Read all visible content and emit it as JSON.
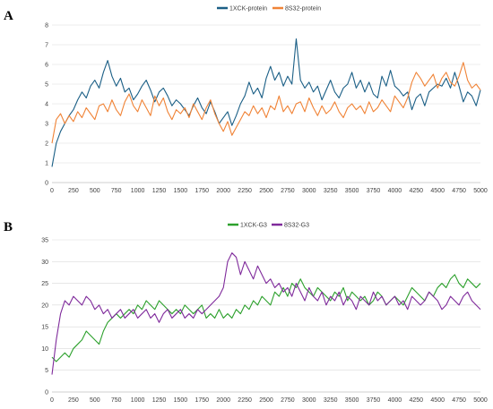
{
  "chart_data": [
    {
      "panel": "A",
      "type": "line",
      "title": "",
      "xlabel": "",
      "ylabel": "",
      "xlim": [
        0,
        5000
      ],
      "ylim": [
        0,
        8
      ],
      "grid": "horizontal",
      "legend_position": "top-center",
      "xticks": [
        "0",
        "250",
        "500",
        "750",
        "1000",
        "1250",
        "1500",
        "1750",
        "2000",
        "2250",
        "2500",
        "2750",
        "3000",
        "3250",
        "3500",
        "3750",
        "4000",
        "4250",
        "4500",
        "4750",
        "5000"
      ],
      "yticks": [
        "0",
        "1",
        "2",
        "3",
        "4",
        "5",
        "6",
        "7",
        "8"
      ],
      "series": [
        {
          "name": "1XCK-protein",
          "color": "#1b5f86",
          "x": [
            0,
            50,
            100,
            150,
            200,
            250,
            300,
            350,
            400,
            450,
            500,
            550,
            600,
            650,
            700,
            750,
            800,
            850,
            900,
            950,
            1000,
            1050,
            1100,
            1150,
            1200,
            1250,
            1300,
            1350,
            1400,
            1450,
            1500,
            1550,
            1600,
            1650,
            1700,
            1750,
            1800,
            1850,
            1900,
            1950,
            2000,
            2050,
            2100,
            2150,
            2200,
            2250,
            2300,
            2350,
            2400,
            2450,
            2500,
            2550,
            2600,
            2650,
            2700,
            2750,
            2800,
            2850,
            2900,
            2950,
            3000,
            3050,
            3100,
            3150,
            3200,
            3250,
            3300,
            3350,
            3400,
            3450,
            3500,
            3550,
            3600,
            3650,
            3700,
            3750,
            3800,
            3850,
            3900,
            3950,
            4000,
            4050,
            4100,
            4150,
            4200,
            4250,
            4300,
            4350,
            4400,
            4450,
            4500,
            4550,
            4600,
            4650,
            4700,
            4750,
            4800,
            4850,
            4900,
            4950,
            5000
          ],
          "values": [
            0.8,
            2.0,
            2.6,
            3.0,
            3.4,
            3.7,
            4.2,
            4.6,
            4.3,
            4.9,
            5.2,
            4.8,
            5.6,
            6.2,
            5.4,
            4.9,
            5.3,
            4.6,
            4.8,
            4.2,
            4.5,
            4.9,
            5.2,
            4.7,
            4.1,
            4.6,
            4.8,
            4.4,
            3.9,
            4.2,
            4.0,
            3.7,
            3.4,
            3.9,
            4.3,
            3.8,
            3.5,
            4.1,
            3.6,
            3.0,
            3.3,
            3.6,
            2.9,
            3.4,
            4.0,
            4.4,
            5.1,
            4.5,
            4.8,
            4.3,
            5.3,
            5.9,
            5.2,
            5.6,
            4.9,
            5.4,
            5.0,
            7.3,
            5.2,
            4.8,
            5.1,
            4.6,
            4.9,
            4.2,
            4.7,
            5.2,
            4.6,
            4.3,
            4.8,
            5.0,
            5.6,
            4.8,
            5.2,
            4.6,
            5.1,
            4.5,
            4.3,
            5.4,
            4.9,
            5.7,
            4.9,
            4.7,
            4.4,
            4.6,
            3.7,
            4.3,
            4.5,
            3.9,
            4.6,
            4.8,
            5.0,
            4.9,
            5.3,
            4.8,
            5.6,
            4.9,
            4.1,
            4.6,
            4.4,
            3.9,
            4.7
          ]
        },
        {
          "name": "8S32-protein",
          "color": "#f08336",
          "x": [
            0,
            50,
            100,
            150,
            200,
            250,
            300,
            350,
            400,
            450,
            500,
            550,
            600,
            650,
            700,
            750,
            800,
            850,
            900,
            950,
            1000,
            1050,
            1100,
            1150,
            1200,
            1250,
            1300,
            1350,
            1400,
            1450,
            1500,
            1550,
            1600,
            1650,
            1700,
            1750,
            1800,
            1850,
            1900,
            1950,
            2000,
            2050,
            2100,
            2150,
            2200,
            2250,
            2300,
            2350,
            2400,
            2450,
            2500,
            2550,
            2600,
            2650,
            2700,
            2750,
            2800,
            2850,
            2900,
            2950,
            3000,
            3050,
            3100,
            3150,
            3200,
            3250,
            3300,
            3350,
            3400,
            3450,
            3500,
            3550,
            3600,
            3650,
            3700,
            3750,
            3800,
            3850,
            3900,
            3950,
            4000,
            4050,
            4100,
            4150,
            4200,
            4250,
            4300,
            4350,
            4400,
            4450,
            4500,
            4550,
            4600,
            4650,
            4700,
            4750,
            4800,
            4850,
            4900,
            4950,
            5000
          ],
          "values": [
            2.0,
            3.2,
            3.5,
            3.0,
            3.4,
            3.1,
            3.6,
            3.3,
            3.8,
            3.5,
            3.2,
            3.9,
            4.0,
            3.6,
            4.2,
            3.7,
            3.4,
            4.1,
            4.5,
            3.9,
            3.6,
            4.2,
            3.8,
            3.4,
            4.4,
            3.9,
            4.3,
            3.6,
            3.2,
            3.7,
            3.5,
            3.8,
            3.3,
            4.0,
            3.6,
            3.2,
            3.8,
            4.2,
            3.5,
            3.0,
            2.6,
            3.1,
            2.4,
            2.8,
            3.2,
            3.6,
            3.4,
            3.9,
            3.5,
            3.8,
            3.3,
            3.9,
            3.7,
            4.4,
            3.6,
            3.9,
            3.5,
            4.0,
            4.1,
            3.6,
            4.3,
            3.8,
            3.4,
            3.9,
            3.5,
            3.7,
            4.1,
            3.6,
            3.3,
            3.8,
            4.0,
            3.7,
            3.9,
            3.5,
            4.1,
            3.6,
            3.8,
            4.2,
            3.9,
            3.6,
            4.4,
            4.1,
            3.8,
            4.3,
            5.1,
            5.6,
            5.3,
            4.9,
            5.2,
            5.5,
            4.8,
            5.3,
            5.6,
            5.1,
            4.9,
            5.4,
            6.1,
            5.2,
            4.8,
            5.0,
            4.7
          ]
        }
      ]
    },
    {
      "panel": "B",
      "type": "line",
      "title": "",
      "xlabel": "",
      "ylabel": "",
      "xlim": [
        0,
        5000
      ],
      "ylim": [
        0,
        35
      ],
      "grid": "horizontal",
      "legend_position": "top-center",
      "xticks": [
        "0",
        "250",
        "500",
        "750",
        "1000",
        "1250",
        "1500",
        "1750",
        "2000",
        "2250",
        "2500",
        "2750",
        "3000",
        "3250",
        "3500",
        "3750",
        "4000",
        "4250",
        "4500",
        "4750",
        "5000"
      ],
      "yticks": [
        "0",
        "5",
        "10",
        "15",
        "20",
        "25",
        "30",
        "35"
      ],
      "series": [
        {
          "name": "1XCK-G3",
          "color": "#2ca02c",
          "x": [
            0,
            50,
            100,
            150,
            200,
            250,
            300,
            350,
            400,
            450,
            500,
            550,
            600,
            650,
            700,
            750,
            800,
            850,
            900,
            950,
            1000,
            1050,
            1100,
            1150,
            1200,
            1250,
            1300,
            1350,
            1400,
            1450,
            1500,
            1550,
            1600,
            1650,
            1700,
            1750,
            1800,
            1850,
            1900,
            1950,
            2000,
            2050,
            2100,
            2150,
            2200,
            2250,
            2300,
            2350,
            2400,
            2450,
            2500,
            2550,
            2600,
            2650,
            2700,
            2750,
            2800,
            2850,
            2900,
            2950,
            3000,
            3050,
            3100,
            3150,
            3200,
            3250,
            3300,
            3350,
            3400,
            3450,
            3500,
            3550,
            3600,
            3650,
            3700,
            3750,
            3800,
            3850,
            3900,
            3950,
            4000,
            4050,
            4100,
            4150,
            4200,
            4250,
            4300,
            4350,
            4400,
            4450,
            4500,
            4550,
            4600,
            4650,
            4700,
            4750,
            4800,
            4850,
            4900,
            4950,
            5000
          ],
          "values": [
            8,
            7,
            8,
            9,
            8,
            10,
            11,
            12,
            14,
            13,
            12,
            11,
            14,
            16,
            17,
            18,
            17,
            18,
            19,
            18,
            20,
            19,
            21,
            20,
            19,
            21,
            20,
            19,
            18,
            19,
            18,
            20,
            19,
            18,
            19,
            20,
            17,
            18,
            17,
            19,
            17,
            18,
            17,
            19,
            18,
            20,
            19,
            21,
            20,
            22,
            21,
            20,
            23,
            22,
            24,
            22,
            25,
            24,
            26,
            24,
            23,
            22,
            24,
            23,
            22,
            21,
            23,
            22,
            24,
            21,
            23,
            22,
            21,
            22,
            20,
            21,
            23,
            22,
            20,
            21,
            22,
            21,
            20,
            22,
            24,
            23,
            22,
            21,
            23,
            22,
            24,
            25,
            24,
            26,
            27,
            25,
            24,
            26,
            25,
            24,
            25
          ]
        },
        {
          "name": "8S32-G3",
          "color": "#7f2a9b",
          "x": [
            0,
            50,
            100,
            150,
            200,
            250,
            300,
            350,
            400,
            450,
            500,
            550,
            600,
            650,
            700,
            750,
            800,
            850,
            900,
            950,
            1000,
            1050,
            1100,
            1150,
            1200,
            1250,
            1300,
            1350,
            1400,
            1450,
            1500,
            1550,
            1600,
            1650,
            1700,
            1750,
            1800,
            1850,
            1900,
            1950,
            2000,
            2050,
            2100,
            2150,
            2200,
            2250,
            2300,
            2350,
            2400,
            2450,
            2500,
            2550,
            2600,
            2650,
            2700,
            2750,
            2800,
            2850,
            2900,
            2950,
            3000,
            3050,
            3100,
            3150,
            3200,
            3250,
            3300,
            3350,
            3400,
            3450,
            3500,
            3550,
            3600,
            3650,
            3700,
            3750,
            3800,
            3850,
            3900,
            3950,
            4000,
            4050,
            4100,
            4150,
            4200,
            4250,
            4300,
            4350,
            4400,
            4450,
            4500,
            4550,
            4600,
            4650,
            4700,
            4750,
            4800,
            4850,
            4900,
            4950,
            5000
          ],
          "values": [
            4,
            12,
            18,
            21,
            20,
            22,
            21,
            20,
            22,
            21,
            19,
            20,
            18,
            19,
            17,
            18,
            19,
            17,
            18,
            19,
            17,
            18,
            19,
            17,
            18,
            16,
            18,
            19,
            17,
            18,
            19,
            17,
            18,
            17,
            19,
            18,
            19,
            20,
            21,
            22,
            24,
            30,
            32,
            31,
            27,
            30,
            28,
            26,
            29,
            27,
            25,
            26,
            24,
            25,
            23,
            24,
            22,
            25,
            23,
            21,
            24,
            22,
            21,
            23,
            20,
            22,
            21,
            23,
            20,
            22,
            21,
            19,
            22,
            21,
            20,
            23,
            21,
            22,
            20,
            21,
            22,
            20,
            21,
            19,
            22,
            21,
            20,
            21,
            23,
            22,
            21,
            19,
            20,
            22,
            21,
            20,
            22,
            23,
            21,
            20,
            19
          ]
        }
      ]
    }
  ]
}
